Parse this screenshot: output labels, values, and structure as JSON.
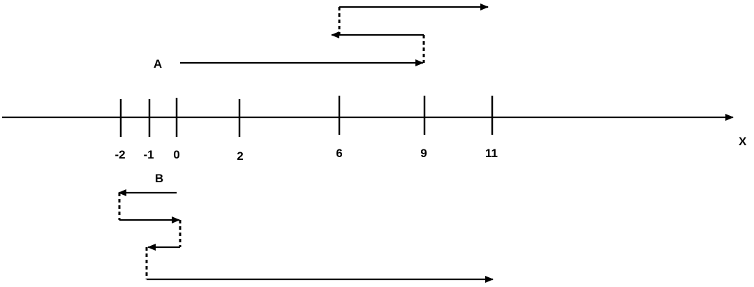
{
  "diagram": {
    "axis_label": "X",
    "ticks": [
      "-2",
      "-1",
      "0",
      "2",
      "6",
      "9",
      "11"
    ],
    "path_a_label": "A",
    "path_b_label": "B"
  }
}
